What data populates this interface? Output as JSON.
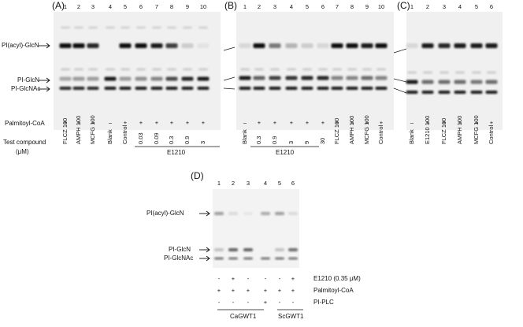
{
  "panelA": {
    "label": "(A)",
    "lane_numbers": [
      "1",
      "2",
      "3",
      "4",
      "5",
      "6",
      "7",
      "8",
      "9",
      "10"
    ],
    "bands": [
      "PI(acyl)-GlcN",
      "PI-GlcN",
      "PI-GlcNAc"
    ],
    "palmitoyl_label": "Palmitoyl-CoA",
    "palmitoyl_marks": [
      "+",
      "+",
      "+",
      "–",
      "+",
      "+",
      "+",
      "+",
      "+",
      "+"
    ],
    "test_compound_label": "Test compound",
    "unit_label": "(μM)",
    "lane_labels": [
      "FLCZ 100",
      "AMPH 100",
      "MCFG 100",
      "Blank",
      "Control",
      "0.03",
      "0.09",
      "0.3",
      "0.9",
      "3"
    ],
    "group_label": "E1210"
  },
  "panelB": {
    "label": "(B)",
    "lane_numbers": [
      "1",
      "2",
      "3",
      "4",
      "5",
      "6",
      "7",
      "8",
      "9",
      "10"
    ],
    "palmitoyl_marks": [
      "–",
      "+",
      "+",
      "+",
      "+",
      "+",
      "+",
      "+",
      "+",
      "+"
    ],
    "lane_labels": [
      "Blank",
      "0.3",
      "0.9",
      "3",
      "9",
      "30",
      "FLCZ 100",
      "AMPH 100",
      "MCFG 100",
      "Control"
    ],
    "group_label": "E1210"
  },
  "panelC": {
    "label": "(C)",
    "lane_numbers": [
      "1",
      "2",
      "3",
      "4",
      "5",
      "6"
    ],
    "palmitoyl_marks": [
      "–",
      "+",
      "+",
      "+",
      "+",
      "+"
    ],
    "lane_labels": [
      "Blank",
      "E1210 100",
      "FLCZ 100",
      "AMPH 100",
      "MCFG 100",
      "Control"
    ]
  },
  "panelD": {
    "label": "(D)",
    "lane_numbers": [
      "1",
      "2",
      "3",
      "4",
      "5",
      "6"
    ],
    "bands": [
      "PI(acyl)-GlcN",
      "PI-GlcN",
      "PI-GlcNAc"
    ],
    "row_e1210": {
      "label": "E1210 (0.35 μM)",
      "marks": [
        "-",
        "+",
        "-",
        "-",
        "-",
        "+"
      ]
    },
    "row_palm": {
      "label": "Palmitoyl-CoA",
      "marks": [
        "+",
        "+",
        "+",
        "+",
        "+",
        "+"
      ]
    },
    "row_piplc": {
      "label": "PI-PLC",
      "marks": [
        "-",
        "-",
        "-",
        "+",
        "-",
        "-"
      ]
    },
    "group1": "CaGWT1",
    "group2": "ScGWT1"
  }
}
